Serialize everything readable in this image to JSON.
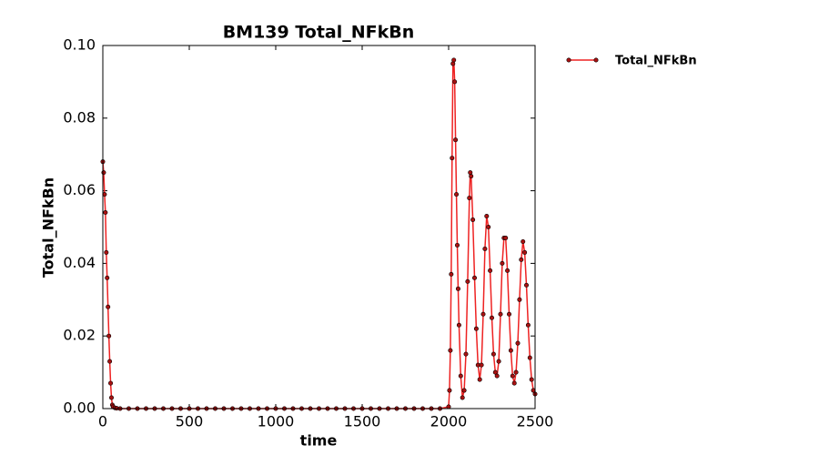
{
  "chart_data": {
    "type": "line",
    "title": "BM139 Total_NFkBn",
    "xlabel": "time",
    "ylabel": "Total_NFkBn",
    "x": [
      0,
      5,
      10,
      15,
      20,
      25,
      30,
      35,
      40,
      45,
      50,
      55,
      60,
      70,
      80,
      100,
      150,
      200,
      250,
      300,
      350,
      400,
      450,
      500,
      550,
      600,
      650,
      700,
      750,
      800,
      850,
      900,
      950,
      1000,
      1050,
      1100,
      1150,
      1200,
      1250,
      1300,
      1350,
      1400,
      1450,
      1500,
      1550,
      1600,
      1650,
      1700,
      1750,
      1800,
      1850,
      1900,
      1950,
      2000,
      2005,
      2010,
      2015,
      2020,
      2025,
      2030,
      2035,
      2040,
      2045,
      2050,
      2055,
      2060,
      2070,
      2080,
      2090,
      2100,
      2110,
      2120,
      2125,
      2130,
      2140,
      2150,
      2160,
      2170,
      2180,
      2190,
      2200,
      2210,
      2220,
      2230,
      2240,
      2250,
      2260,
      2270,
      2280,
      2290,
      2300,
      2310,
      2320,
      2330,
      2340,
      2350,
      2360,
      2370,
      2380,
      2390,
      2400,
      2410,
      2420,
      2430,
      2440,
      2450,
      2460,
      2470,
      2480,
      2490,
      2500
    ],
    "series": [
      {
        "name": "Total_NFkBn",
        "color": "#ee2222",
        "marker_color": "#aa1111",
        "values": [
          0.068,
          0.065,
          0.059,
          0.054,
          0.043,
          0.036,
          0.028,
          0.02,
          0.013,
          0.007,
          0.003,
          0.001,
          0.0005,
          0.0002,
          0.0001,
          0,
          0,
          0,
          0,
          0,
          0,
          0,
          0,
          0,
          0,
          0,
          0,
          0,
          0,
          0,
          0,
          0,
          0,
          0,
          0,
          0,
          0,
          0,
          0,
          0,
          0,
          0,
          0,
          0,
          0,
          0,
          0,
          0,
          0,
          0,
          0,
          0,
          0,
          0.0005,
          0.005,
          0.016,
          0.037,
          0.069,
          0.095,
          0.096,
          0.09,
          0.074,
          0.059,
          0.045,
          0.033,
          0.023,
          0.009,
          0.003,
          0.005,
          0.015,
          0.035,
          0.058,
          0.065,
          0.064,
          0.052,
          0.036,
          0.022,
          0.012,
          0.008,
          0.012,
          0.026,
          0.044,
          0.053,
          0.05,
          0.038,
          0.025,
          0.015,
          0.01,
          0.009,
          0.013,
          0.026,
          0.04,
          0.047,
          0.047,
          0.038,
          0.026,
          0.016,
          0.009,
          0.007,
          0.01,
          0.018,
          0.03,
          0.041,
          0.046,
          0.043,
          0.034,
          0.023,
          0.014,
          0.008,
          0.005,
          0.004
        ]
      }
    ],
    "xlim": [
      0,
      2500
    ],
    "xticks": [
      0,
      500,
      1000,
      1500,
      2000,
      2500
    ],
    "ylim": [
      0,
      0.1
    ],
    "yticks": [
      {
        "value": 0,
        "label": "0.00"
      },
      {
        "value": 0.02,
        "label": "0.02"
      },
      {
        "value": 0.04,
        "label": "0.04"
      },
      {
        "value": 0.06,
        "label": "0.06"
      },
      {
        "value": 0.08,
        "label": "0.08"
      },
      {
        "value": 0.1,
        "label": "0.10"
      }
    ],
    "legend": "outside-upper-right"
  }
}
